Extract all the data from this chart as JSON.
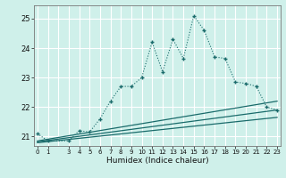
{
  "xlabel": "Humidex (Indice chaleur)",
  "bg_color": "#cff0ea",
  "grid_color": "#ffffff",
  "line_color": "#1a6b6b",
  "xlim": [
    -0.3,
    23.3
  ],
  "ylim": [
    20.68,
    25.45
  ],
  "yticks": [
    21,
    22,
    23,
    24,
    25
  ],
  "xtick_positions": [
    0,
    1,
    3,
    4,
    5,
    6,
    7,
    8,
    9,
    10,
    11,
    12,
    13,
    14,
    15,
    16,
    17,
    18,
    19,
    20,
    21,
    22,
    23
  ],
  "xtick_labels": [
    "0",
    "1",
    "3",
    "4",
    "5",
    "6",
    "7",
    "8",
    "9",
    "10",
    "11",
    "12",
    "13",
    "14",
    "15",
    "16",
    "17",
    "18",
    "19",
    "20",
    "21",
    "22",
    "23"
  ],
  "main_x": [
    0,
    1,
    3,
    4,
    5,
    6,
    7,
    8,
    9,
    10,
    11,
    12,
    13,
    14,
    15,
    16,
    17,
    18,
    19,
    20,
    21,
    22,
    23
  ],
  "main_y": [
    21.1,
    20.85,
    20.85,
    21.2,
    21.15,
    21.6,
    22.2,
    22.7,
    22.7,
    23.0,
    24.2,
    23.2,
    24.3,
    23.65,
    25.1,
    24.6,
    23.7,
    23.65,
    22.85,
    22.8,
    22.7,
    22.0,
    21.9
  ],
  "line1_x": [
    0,
    23
  ],
  "line1_y": [
    20.85,
    22.2
  ],
  "line2_x": [
    0,
    23
  ],
  "line2_y": [
    20.82,
    21.9
  ],
  "line3_x": [
    0,
    23
  ],
  "line3_y": [
    20.79,
    21.65
  ]
}
